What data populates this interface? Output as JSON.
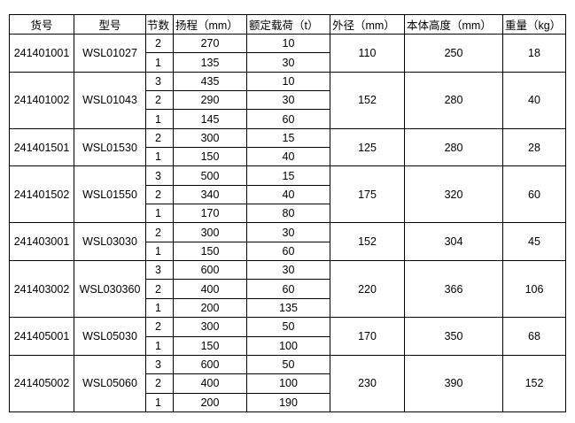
{
  "headers": [
    "货号",
    "型号",
    "节数",
    "扬程（mm）",
    "额定载荷（t）",
    "外径（mm）",
    "本体高度（mm）",
    "重量（kg）"
  ],
  "products": [
    {
      "item_no": "241401001",
      "model": "WSL01027",
      "outer_diameter": "110",
      "body_height": "250",
      "weight": "18",
      "stages": [
        {
          "sections": "2",
          "stroke": "270",
          "load": "10"
        },
        {
          "sections": "1",
          "stroke": "135",
          "load": "30"
        }
      ]
    },
    {
      "item_no": "241401002",
      "model": "WSL01043",
      "outer_diameter": "152",
      "body_height": "280",
      "weight": "40",
      "stages": [
        {
          "sections": "3",
          "stroke": "435",
          "load": "10"
        },
        {
          "sections": "2",
          "stroke": "290",
          "load": "30"
        },
        {
          "sections": "1",
          "stroke": "145",
          "load": "60"
        }
      ]
    },
    {
      "item_no": "241401501",
      "model": "WSL01530",
      "outer_diameter": "125",
      "body_height": "280",
      "weight": "28",
      "stages": [
        {
          "sections": "2",
          "stroke": "300",
          "load": "15"
        },
        {
          "sections": "1",
          "stroke": "150",
          "load": "40"
        }
      ]
    },
    {
      "item_no": "241401502",
      "model": "WSL01550",
      "outer_diameter": "175",
      "body_height": "320",
      "weight": "60",
      "stages": [
        {
          "sections": "3",
          "stroke": "500",
          "load": "15"
        },
        {
          "sections": "2",
          "stroke": "340",
          "load": "40"
        },
        {
          "sections": "1",
          "stroke": "170",
          "load": "80"
        }
      ]
    },
    {
      "item_no": "241403001",
      "model": "WSL03030",
      "outer_diameter": "152",
      "body_height": "304",
      "weight": "45",
      "stages": [
        {
          "sections": "2",
          "stroke": "300",
          "load": "30"
        },
        {
          "sections": "1",
          "stroke": "150",
          "load": "60"
        }
      ]
    },
    {
      "item_no": "241403002",
      "model": "WSL030360",
      "outer_diameter": "220",
      "body_height": "366",
      "weight": "106",
      "stages": [
        {
          "sections": "3",
          "stroke": "600",
          "load": "30"
        },
        {
          "sections": "2",
          "stroke": "400",
          "load": "60"
        },
        {
          "sections": "1",
          "stroke": "200",
          "load": "135"
        }
      ]
    },
    {
      "item_no": "241405001",
      "model": "WSL05030",
      "outer_diameter": "170",
      "body_height": "350",
      "weight": "68",
      "stages": [
        {
          "sections": "2",
          "stroke": "300",
          "load": "50"
        },
        {
          "sections": "1",
          "stroke": "150",
          "load": "100"
        }
      ]
    },
    {
      "item_no": "241405002",
      "model": "WSL05060",
      "outer_diameter": "230",
      "body_height": "390",
      "weight": "152",
      "stages": [
        {
          "sections": "3",
          "stroke": "600",
          "load": "50"
        },
        {
          "sections": "2",
          "stroke": "400",
          "load": "100"
        },
        {
          "sections": "1",
          "stroke": "200",
          "load": "190"
        }
      ]
    }
  ]
}
